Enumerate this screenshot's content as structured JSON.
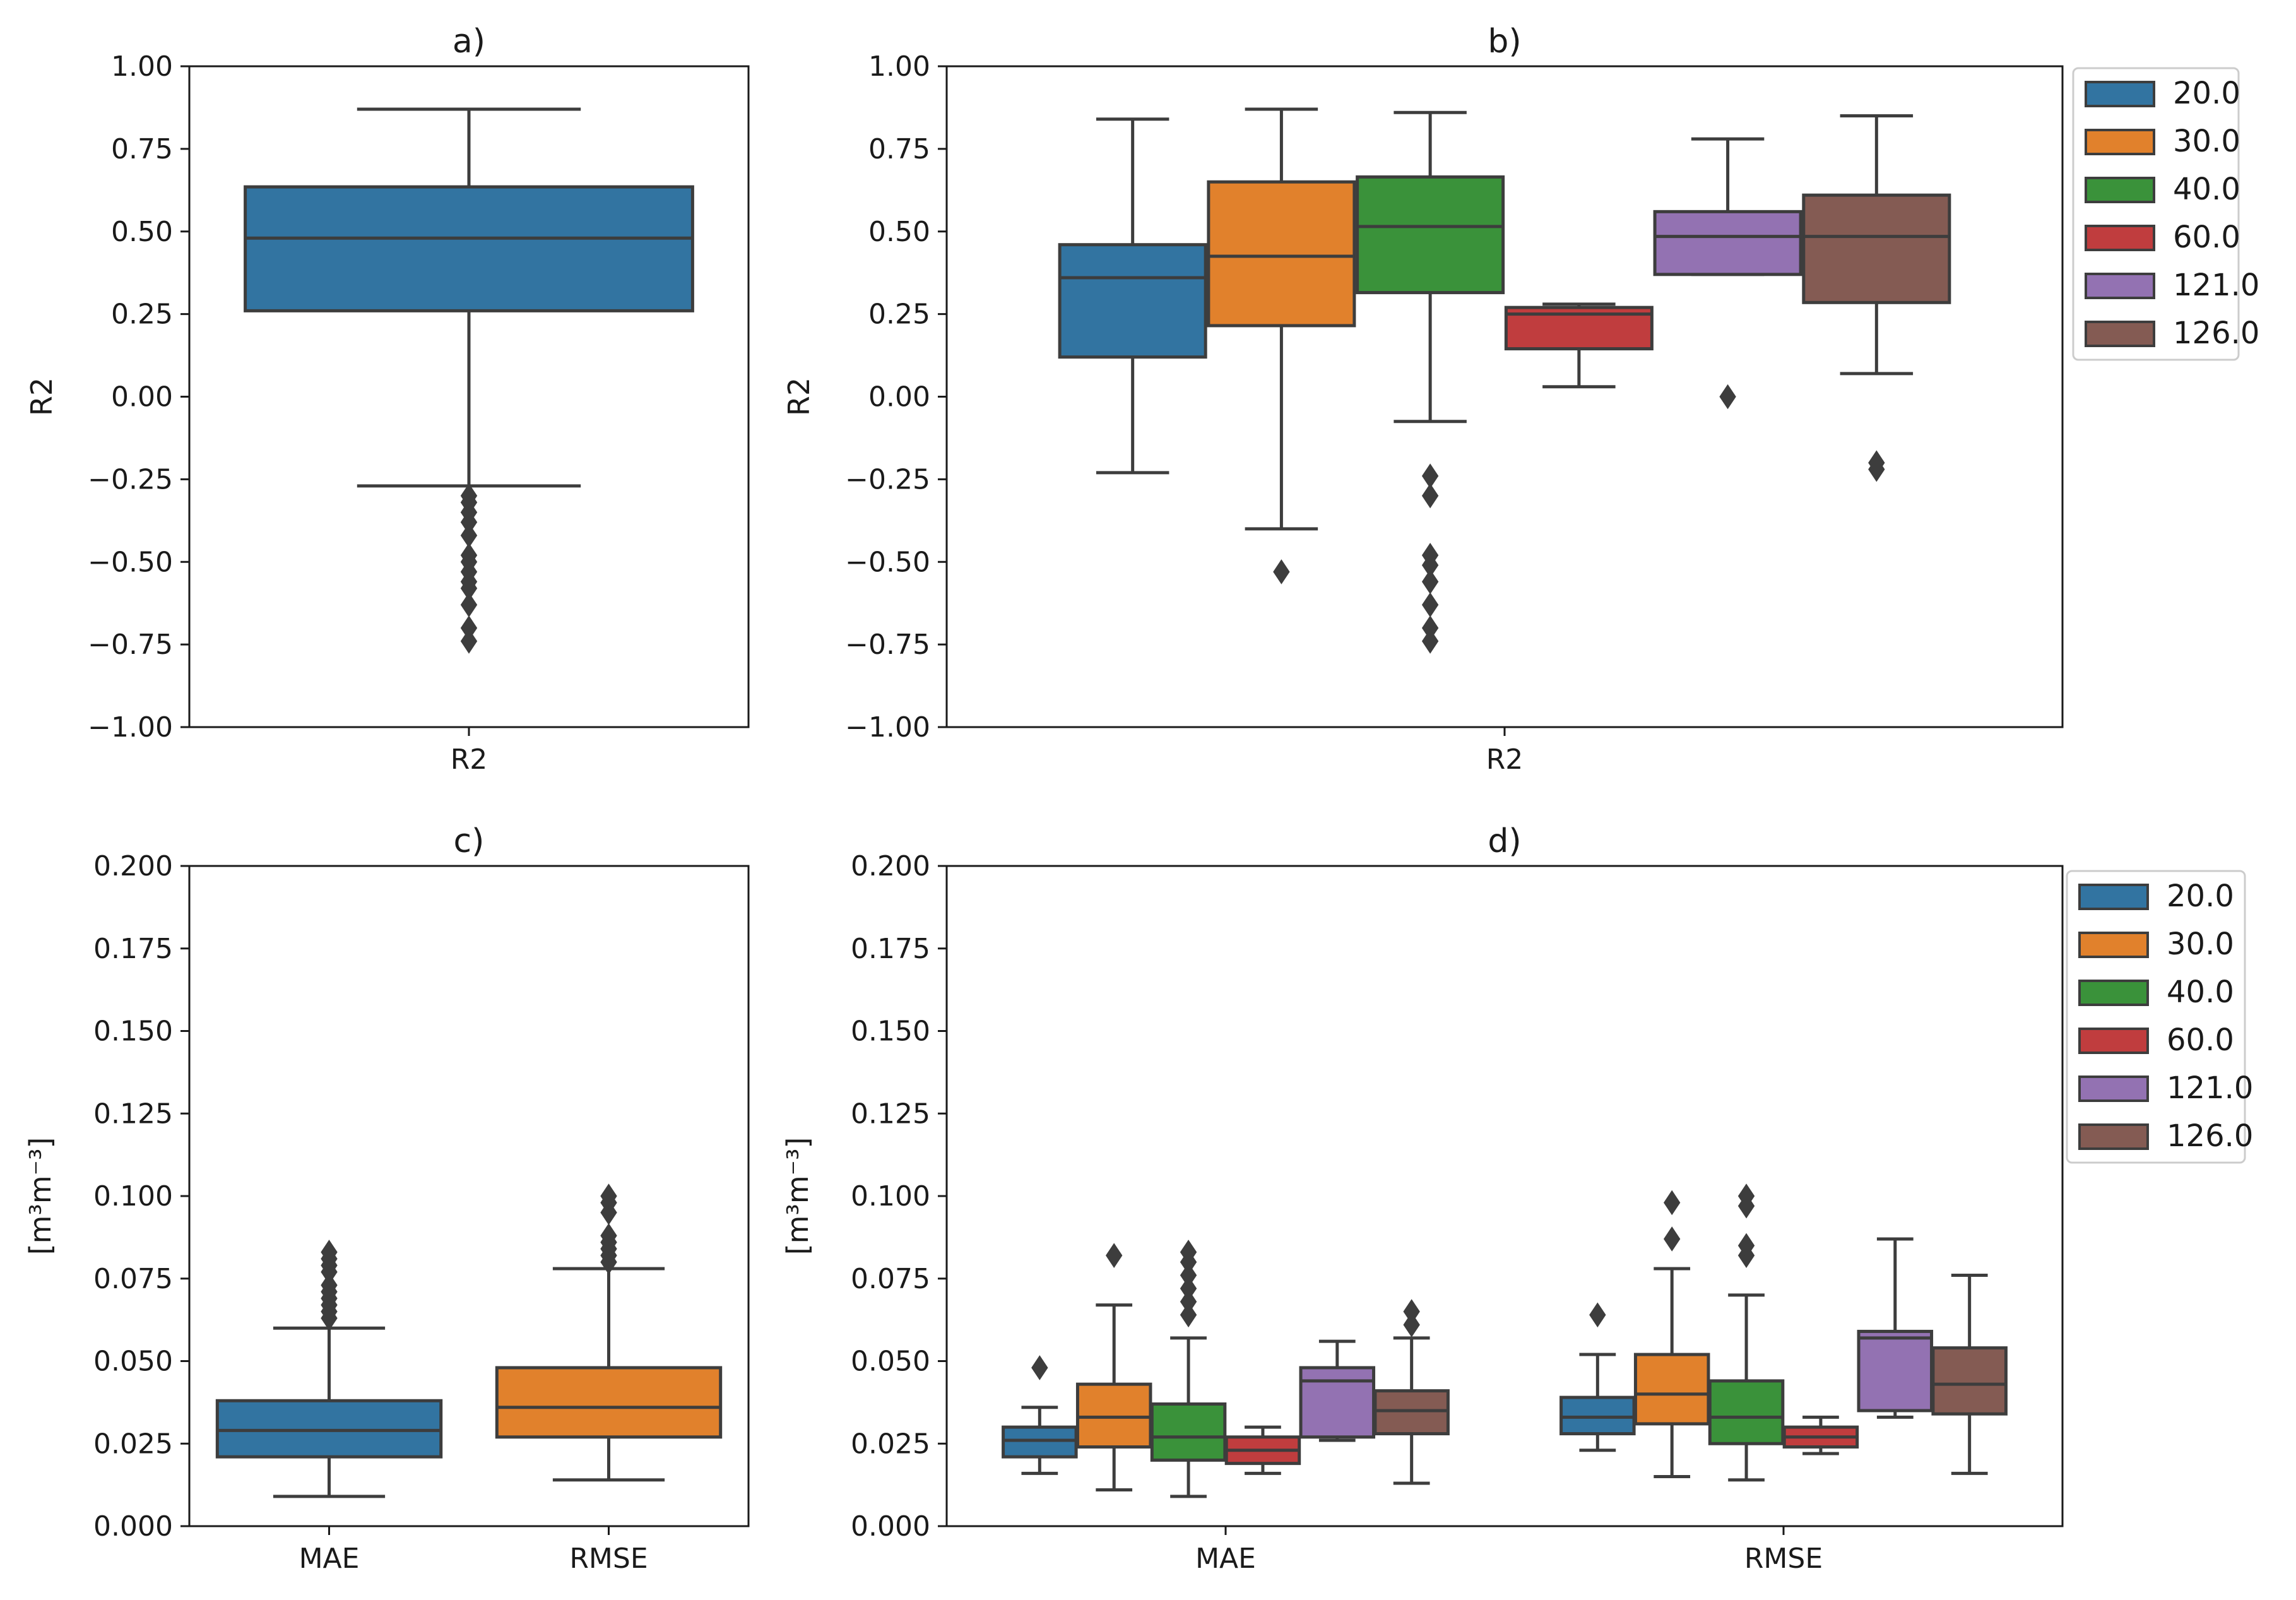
{
  "colors": {
    "20.0": "#3274a1",
    "30.0": "#e1812c",
    "40.0": "#3a923a",
    "60.0": "#c03d3e",
    "121.0": "#9372b2",
    "126.0": "#845b53",
    "edge": "#3d3d3d"
  },
  "chart_data": [
    {
      "id": "a",
      "type": "box",
      "title": "a)",
      "ylabel": "R2",
      "ylim": [
        -1.0,
        1.0
      ],
      "yticks": [
        "1.00",
        "0.75",
        "0.50",
        "0.25",
        "0.00",
        "−0.25",
        "−0.50",
        "−0.75",
        "−1.00"
      ],
      "ytick_values": [
        1.0,
        0.75,
        0.5,
        0.25,
        0.0,
        -0.25,
        -0.5,
        -0.75,
        -1.0
      ],
      "categories": [
        "R2"
      ],
      "boxes": [
        {
          "category": "R2",
          "group": "all",
          "color": "#3274a1",
          "whislo": -0.27,
          "q1": 0.26,
          "med": 0.48,
          "q3": 0.635,
          "whishi": 0.87,
          "fliers": [
            -0.3,
            -0.32,
            -0.35,
            -0.38,
            -0.42,
            -0.48,
            -0.5,
            -0.53,
            -0.56,
            -0.58,
            -0.63,
            -0.7,
            -0.74
          ]
        }
      ]
    },
    {
      "id": "b",
      "type": "box",
      "title": "b)",
      "ylabel": "R2",
      "ylim": [
        -1.0,
        1.0
      ],
      "yticks": [
        "1.00",
        "0.75",
        "0.50",
        "0.25",
        "0.00",
        "−0.25",
        "−0.50",
        "−0.75",
        "−1.00"
      ],
      "ytick_values": [
        1.0,
        0.75,
        0.5,
        0.25,
        0.0,
        -0.25,
        -0.5,
        -0.75,
        -1.0
      ],
      "categories": [
        "R2"
      ],
      "legend": [
        "20.0",
        "30.0",
        "40.0",
        "60.0",
        "121.0",
        "126.0"
      ],
      "legend_position": "outside-right-top",
      "boxes": [
        {
          "category": "R2",
          "group": "20.0",
          "whislo": -0.23,
          "q1": 0.12,
          "med": 0.36,
          "q3": 0.46,
          "whishi": 0.84,
          "fliers": []
        },
        {
          "category": "R2",
          "group": "30.0",
          "whislo": -0.4,
          "q1": 0.215,
          "med": 0.425,
          "q3": 0.65,
          "whishi": 0.87,
          "fliers": [
            -0.53
          ]
        },
        {
          "category": "R2",
          "group": "40.0",
          "whislo": -0.075,
          "q1": 0.315,
          "med": 0.515,
          "q3": 0.665,
          "whishi": 0.86,
          "fliers": [
            -0.24,
            -0.3,
            -0.48,
            -0.51,
            -0.56,
            -0.63,
            -0.7,
            -0.74
          ]
        },
        {
          "category": "R2",
          "group": "60.0",
          "whislo": 0.03,
          "q1": 0.145,
          "med": 0.25,
          "q3": 0.27,
          "whishi": 0.28,
          "fliers": []
        },
        {
          "category": "R2",
          "group": "121.0",
          "whislo": 0.37,
          "q1": 0.37,
          "med": 0.485,
          "q3": 0.56,
          "whishi": 0.78,
          "fliers": 0.0
        },
        {
          "category": "R2",
          "group": "126.0",
          "whislo": 0.07,
          "q1": 0.285,
          "med": 0.485,
          "q3": 0.61,
          "whishi": 0.85,
          "fliers": [
            -0.2,
            -0.22
          ]
        }
      ]
    },
    {
      "id": "c",
      "type": "box",
      "title": "c)",
      "ylabel": "[m³m⁻³]",
      "ylim": [
        0.0,
        0.2
      ],
      "yticks": [
        "0.200",
        "0.175",
        "0.150",
        "0.125",
        "0.100",
        "0.075",
        "0.050",
        "0.025",
        "0.000"
      ],
      "ytick_values": [
        0.2,
        0.175,
        0.15,
        0.125,
        0.1,
        0.075,
        0.05,
        0.025,
        0.0
      ],
      "categories": [
        "MAE",
        "RMSE"
      ],
      "boxes": [
        {
          "category": "MAE",
          "group": "MAE",
          "color": "#3274a1",
          "whislo": 0.009,
          "q1": 0.021,
          "med": 0.029,
          "q3": 0.038,
          "whishi": 0.06,
          "fliers": [
            0.063,
            0.065,
            0.067,
            0.069,
            0.071,
            0.073,
            0.077,
            0.079,
            0.081,
            0.083
          ]
        },
        {
          "category": "RMSE",
          "group": "RMSE",
          "color": "#e1812c",
          "whislo": 0.014,
          "q1": 0.027,
          "med": 0.036,
          "q3": 0.048,
          "whishi": 0.078,
          "fliers": [
            0.08,
            0.082,
            0.084,
            0.086,
            0.088,
            0.095,
            0.098,
            0.1
          ]
        }
      ]
    },
    {
      "id": "d",
      "type": "box",
      "title": "d)",
      "ylabel": "[m³m⁻³]",
      "ylim": [
        0.0,
        0.2
      ],
      "yticks": [
        "0.200",
        "0.175",
        "0.150",
        "0.125",
        "0.100",
        "0.075",
        "0.050",
        "0.025",
        "0.000"
      ],
      "ytick_values": [
        0.2,
        0.175,
        0.15,
        0.125,
        0.1,
        0.075,
        0.05,
        0.025,
        0.0
      ],
      "categories": [
        "MAE",
        "RMSE"
      ],
      "legend": [
        "20.0",
        "30.0",
        "40.0",
        "60.0",
        "121.0",
        "126.0"
      ],
      "legend_position": "outside-right-top",
      "boxes": [
        {
          "category": "MAE",
          "group": "20.0",
          "whislo": 0.016,
          "q1": 0.021,
          "med": 0.026,
          "q3": 0.03,
          "whishi": 0.036,
          "fliers": [
            0.048
          ]
        },
        {
          "category": "MAE",
          "group": "30.0",
          "whislo": 0.011,
          "q1": 0.024,
          "med": 0.033,
          "q3": 0.043,
          "whishi": 0.067,
          "fliers": [
            0.082
          ]
        },
        {
          "category": "MAE",
          "group": "40.0",
          "whislo": 0.009,
          "q1": 0.02,
          "med": 0.027,
          "q3": 0.037,
          "whishi": 0.057,
          "fliers": [
            0.064,
            0.068,
            0.072,
            0.076,
            0.08,
            0.083
          ]
        },
        {
          "category": "MAE",
          "group": "60.0",
          "whislo": 0.016,
          "q1": 0.019,
          "med": 0.023,
          "q3": 0.027,
          "whishi": 0.03,
          "fliers": []
        },
        {
          "category": "MAE",
          "group": "121.0",
          "whislo": 0.026,
          "q1": 0.027,
          "med": 0.044,
          "q3": 0.048,
          "whishi": 0.056,
          "fliers": []
        },
        {
          "category": "MAE",
          "group": "126.0",
          "whislo": 0.013,
          "q1": 0.028,
          "med": 0.035,
          "q3": 0.041,
          "whishi": 0.057,
          "fliers": [
            0.061,
            0.065
          ]
        },
        {
          "category": "RMSE",
          "group": "20.0",
          "whislo": 0.023,
          "q1": 0.028,
          "med": 0.033,
          "q3": 0.039,
          "whishi": 0.052,
          "fliers": [
            0.064
          ]
        },
        {
          "category": "RMSE",
          "group": "30.0",
          "whislo": 0.015,
          "q1": 0.031,
          "med": 0.04,
          "q3": 0.052,
          "whishi": 0.078,
          "fliers": [
            0.087,
            0.098
          ]
        },
        {
          "category": "RMSE",
          "group": "40.0",
          "whislo": 0.014,
          "q1": 0.025,
          "med": 0.033,
          "q3": 0.044,
          "whishi": 0.07,
          "fliers": [
            0.082,
            0.085,
            0.097,
            0.1
          ]
        },
        {
          "category": "RMSE",
          "group": "60.0",
          "whislo": 0.022,
          "q1": 0.024,
          "med": 0.027,
          "q3": 0.03,
          "whishi": 0.033,
          "fliers": []
        },
        {
          "category": "RMSE",
          "group": "121.0",
          "whislo": 0.033,
          "q1": 0.035,
          "med": 0.057,
          "q3": 0.059,
          "whishi": 0.087,
          "fliers": []
        },
        {
          "category": "RMSE",
          "group": "126.0",
          "whislo": 0.016,
          "q1": 0.034,
          "med": 0.043,
          "q3": 0.054,
          "whishi": 0.076,
          "fliers": []
        }
      ]
    }
  ]
}
